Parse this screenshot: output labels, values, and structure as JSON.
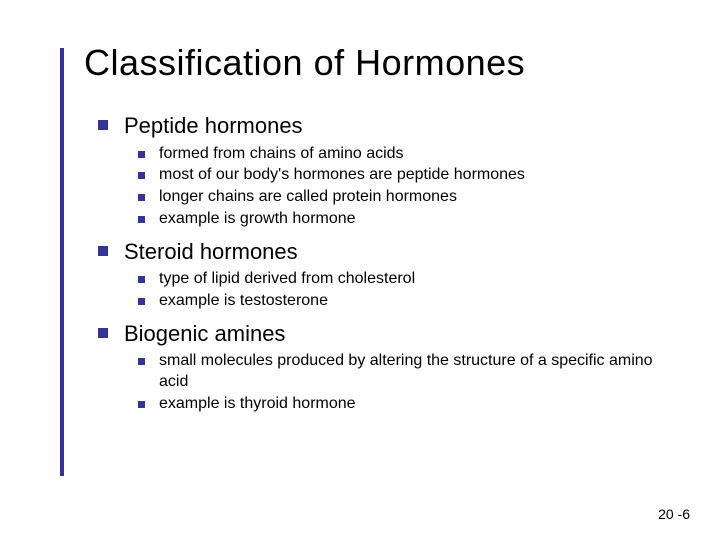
{
  "title": "Classification of Hormones",
  "accent_color": "#333399",
  "background_color": "#ffffff",
  "text_color": "#000000",
  "title_fontsize": 36,
  "lvl1_fontsize": 22,
  "lvl2_fontsize": 16,
  "sections": [
    {
      "heading": "Peptide hormones",
      "items": [
        "formed from chains of amino acids",
        "most of our body's hormones are peptide hormones",
        "longer chains are called protein hormones",
        "example is growth hormone"
      ]
    },
    {
      "heading": "Steroid hormones",
      "items": [
        "type of lipid derived from cholesterol",
        "example is testosterone"
      ]
    },
    {
      "heading": "Biogenic amines",
      "items": [
        "small molecules produced by altering the structure of a specific amino acid",
        "example is thyroid hormone"
      ]
    }
  ],
  "page_number": "20 -6"
}
